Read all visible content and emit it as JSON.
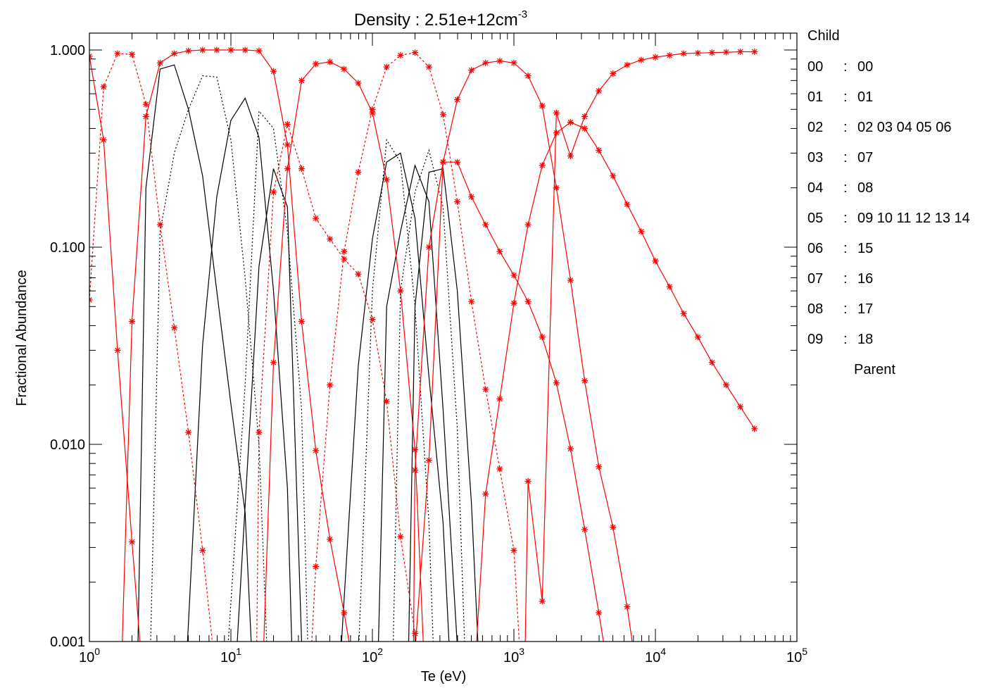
{
  "chart_data": {
    "type": "line",
    "title_prefix": "Density : 2.51e+12cm",
    "title_exp": "-3",
    "xlabel": "Te (eV)",
    "ylabel": "Fractional Abundance",
    "xscale": "log",
    "yscale": "log",
    "xlim": [
      1,
      100000
    ],
    "ylim": [
      0.001,
      1.2
    ],
    "x_ticks": [
      {
        "base": "10",
        "exp": "0",
        "value": 1
      },
      {
        "base": "10",
        "exp": "1",
        "value": 10
      },
      {
        "base": "10",
        "exp": "2",
        "value": 100
      },
      {
        "base": "10",
        "exp": "3",
        "value": 1000
      },
      {
        "base": "10",
        "exp": "4",
        "value": 10000
      },
      {
        "base": "10",
        "exp": "5",
        "value": 100000
      }
    ],
    "y_ticks": [
      {
        "label": "0.001",
        "value": 0.001
      },
      {
        "label": "0.010",
        "value": 0.01
      },
      {
        "label": "0.100",
        "value": 0.1
      },
      {
        "label": "1.000",
        "value": 1.0
      }
    ],
    "legend": {
      "header": "Child",
      "footer": "Parent",
      "placement": "right",
      "rows": [
        {
          "child": "00",
          "sep": ":",
          "parents": "00"
        },
        {
          "child": "01",
          "sep": ":",
          "parents": "01"
        },
        {
          "child": "02",
          "sep": ":",
          "parents": "02 03 04 05 06"
        },
        {
          "child": "03",
          "sep": ":",
          "parents": "07"
        },
        {
          "child": "04",
          "sep": ":",
          "parents": "08"
        },
        {
          "child": "05",
          "sep": ":",
          "parents": "09 10 11 12 13 14"
        },
        {
          "child": "06",
          "sep": ":",
          "parents": "15"
        },
        {
          "child": "07",
          "sep": ":",
          "parents": "16"
        },
        {
          "child": "08",
          "sep": ":",
          "parents": "17"
        },
        {
          "child": "09",
          "sep": ":",
          "parents": "18"
        }
      ]
    },
    "colors": {
      "child": "#ff0000",
      "parent": "#000000",
      "marker": "#ff0000"
    },
    "child_series": [
      {
        "child": "00",
        "dash": false,
        "points": [
          [
            1,
            0.93
          ],
          [
            1.26,
            0.35
          ],
          [
            1.58,
            0.03
          ],
          [
            2.0,
            0.0032
          ],
          [
            2.3,
            0.0009
          ]
        ]
      },
      {
        "child": "01",
        "dash": true,
        "points": [
          [
            1,
            0.054
          ],
          [
            1.26,
            0.65
          ],
          [
            1.58,
            0.96
          ],
          [
            2.0,
            0.95
          ],
          [
            2.51,
            0.53
          ],
          [
            3.16,
            0.13
          ],
          [
            3.98,
            0.039
          ],
          [
            5.01,
            0.0115
          ],
          [
            6.31,
            0.0029
          ],
          [
            7.5,
            0.0009
          ]
        ]
      },
      {
        "child": "02",
        "dash": false,
        "points": [
          [
            1.7,
            0.0009
          ],
          [
            2.0,
            0.042
          ],
          [
            2.51,
            0.46
          ],
          [
            3.16,
            0.86
          ],
          [
            3.98,
            0.96
          ],
          [
            5.01,
            0.99
          ],
          [
            6.31,
            1.0
          ],
          [
            7.94,
            1.0
          ],
          [
            10,
            1.0
          ],
          [
            12.6,
            1.0
          ],
          [
            15.8,
            0.99
          ],
          [
            20.0,
            0.78
          ],
          [
            25.1,
            0.33
          ],
          [
            31.6,
            0.042
          ],
          [
            39.8,
            0.0093
          ],
          [
            50.1,
            0.0033
          ],
          [
            63.1,
            0.0014
          ],
          [
            70,
            0.0009
          ]
        ]
      },
      {
        "child": "03",
        "dash": true,
        "points": [
          [
            15.2,
            0.0009
          ],
          [
            15.8,
            0.0115
          ],
          [
            20.0,
            0.19
          ],
          [
            25.1,
            0.42
          ],
          [
            31.6,
            0.25
          ],
          [
            39.8,
            0.14
          ],
          [
            50.1,
            0.11
          ],
          [
            63.1,
            0.087
          ],
          [
            79.4,
            0.073
          ],
          [
            100,
            0.043
          ],
          [
            126,
            0.0165
          ],
          [
            158,
            0.0034
          ],
          [
            200,
            0.0011
          ],
          [
            210,
            0.0009
          ]
        ]
      },
      {
        "child": "04",
        "dash": false,
        "points": [
          [
            17,
            0.0009
          ],
          [
            20.0,
            0.026
          ],
          [
            25.1,
            0.25
          ],
          [
            31.6,
            0.7
          ],
          [
            39.8,
            0.85
          ],
          [
            50.1,
            0.87
          ],
          [
            63.1,
            0.8
          ],
          [
            79.4,
            0.68
          ],
          [
            100,
            0.48
          ],
          [
            126,
            0.22
          ],
          [
            158,
            0.06
          ],
          [
            200,
            0.0094
          ],
          [
            230,
            0.0009
          ]
        ]
      },
      {
        "child": "05",
        "dash": true,
        "points": [
          [
            37,
            0.0009
          ],
          [
            39.8,
            0.0024
          ],
          [
            50.1,
            0.02
          ],
          [
            63.1,
            0.095
          ],
          [
            79.4,
            0.24
          ],
          [
            100,
            0.5
          ],
          [
            126,
            0.82
          ],
          [
            158,
            0.94
          ],
          [
            200,
            0.97
          ],
          [
            251,
            0.82
          ],
          [
            316,
            0.47
          ],
          [
            398,
            0.17
          ],
          [
            501,
            0.053
          ],
          [
            631,
            0.019
          ],
          [
            794,
            0.0075
          ],
          [
            1000,
            0.0029
          ],
          [
            1100,
            0.0009
          ]
        ]
      },
      {
        "child": "06",
        "dash": false,
        "points": [
          [
            195,
            0.0009
          ],
          [
            200,
            0.0074
          ],
          [
            251,
            0.1
          ],
          [
            316,
            0.27
          ],
          [
            398,
            0.56
          ],
          [
            501,
            0.79
          ],
          [
            631,
            0.86
          ],
          [
            794,
            0.88
          ],
          [
            1000,
            0.86
          ],
          [
            1259,
            0.74
          ],
          [
            1585,
            0.52
          ],
          [
            1995,
            0.2
          ],
          [
            2512,
            0.068
          ],
          [
            3162,
            0.021
          ],
          [
            3981,
            0.0077
          ],
          [
            5012,
            0.0038
          ],
          [
            6310,
            0.0015
          ],
          [
            7000,
            0.0009
          ]
        ]
      },
      {
        "child": "07",
        "dash": false,
        "points": [
          [
            200,
            0.0009
          ],
          [
            251,
            0.0083
          ],
          [
            316,
            0.27
          ],
          [
            398,
            0.27
          ],
          [
            501,
            0.18
          ],
          [
            631,
            0.13
          ],
          [
            794,
            0.095
          ],
          [
            1000,
            0.072
          ],
          [
            1259,
            0.053
          ],
          [
            1585,
            0.035
          ],
          [
            1995,
            0.0205
          ],
          [
            2512,
            0.0095
          ],
          [
            3162,
            0.0037
          ],
          [
            3981,
            0.0014
          ],
          [
            4400,
            0.0009
          ]
        ]
      },
      {
        "child": "08",
        "dash": false,
        "points": [
          [
            540,
            0.0009
          ],
          [
            631,
            0.0056
          ],
          [
            794,
            0.017
          ],
          [
            1000,
            0.052
          ],
          [
            1259,
            0.13
          ],
          [
            1585,
            0.26
          ],
          [
            1995,
            0.38
          ],
          [
            2512,
            0.43
          ],
          [
            3162,
            0.4
          ],
          [
            3981,
            0.31
          ],
          [
            5012,
            0.23
          ],
          [
            6310,
            0.165
          ],
          [
            7943,
            0.12
          ],
          [
            10000,
            0.085
          ],
          [
            12589,
            0.063
          ],
          [
            15849,
            0.046
          ],
          [
            19953,
            0.035
          ],
          [
            25119,
            0.026
          ],
          [
            31623,
            0.02
          ],
          [
            39811,
            0.0155
          ],
          [
            50119,
            0.012
          ]
        ]
      },
      {
        "child": "09",
        "dash": false,
        "points": [
          [
            1200,
            0.0009
          ],
          [
            1259,
            0.0065
          ],
          [
            1585,
            0.0016
          ],
          [
            1995,
            0.48
          ],
          [
            2512,
            0.29
          ],
          [
            3162,
            0.46
          ],
          [
            3981,
            0.62
          ],
          [
            5012,
            0.76
          ],
          [
            6310,
            0.84
          ],
          [
            7943,
            0.89
          ],
          [
            10000,
            0.92
          ],
          [
            12589,
            0.94
          ],
          [
            15849,
            0.96
          ],
          [
            19953,
            0.965
          ],
          [
            25119,
            0.97
          ],
          [
            31623,
            0.975
          ],
          [
            39811,
            0.98
          ],
          [
            50119,
            0.98
          ]
        ]
      }
    ],
    "parent_series": [
      {
        "parent": "03",
        "dash": false,
        "points": [
          [
            2.2,
            0.0009
          ],
          [
            2.51,
            0.2
          ],
          [
            3.16,
            0.8
          ],
          [
            3.98,
            0.84
          ],
          [
            5.01,
            0.5
          ],
          [
            6.31,
            0.23
          ],
          [
            7.94,
            0.06
          ],
          [
            10,
            0.016
          ],
          [
            12.6,
            0.0045
          ],
          [
            14,
            0.0009
          ]
        ]
      },
      {
        "parent": "04",
        "dash": true,
        "points": [
          [
            2.7,
            0.0009
          ],
          [
            3.16,
            0.12
          ],
          [
            3.98,
            0.3
          ],
          [
            5.01,
            0.5
          ],
          [
            6.31,
            0.74
          ],
          [
            7.94,
            0.73
          ],
          [
            10,
            0.35
          ],
          [
            12.6,
            0.07
          ],
          [
            15.8,
            0.01
          ],
          [
            18,
            0.0009
          ]
        ]
      },
      {
        "parent": "05",
        "dash": false,
        "points": [
          [
            4.9,
            0.0009
          ],
          [
            6.31,
            0.032
          ],
          [
            7.94,
            0.18
          ],
          [
            10,
            0.44
          ],
          [
            12.6,
            0.57
          ],
          [
            15.8,
            0.36
          ],
          [
            20.0,
            0.06
          ],
          [
            25.1,
            0.006
          ],
          [
            27,
            0.0009
          ]
        ]
      },
      {
        "parent": "06",
        "dash": true,
        "points": [
          [
            9.5,
            0.0009
          ],
          [
            12.6,
            0.02
          ],
          [
            15.8,
            0.49
          ],
          [
            20.0,
            0.4
          ],
          [
            25.1,
            0.12
          ],
          [
            31.6,
            0.015
          ],
          [
            35,
            0.0009
          ]
        ]
      },
      {
        "parent": "10",
        "dash": false,
        "points": [
          [
            11,
            0.0009
          ],
          [
            15.8,
            0.08
          ],
          [
            20.0,
            0.25
          ],
          [
            25.1,
            0.16
          ],
          [
            31.6,
            0.001
          ],
          [
            32,
            0.0009
          ]
        ]
      },
      {
        "parent": "11",
        "dash": false,
        "points": [
          [
            60,
            0.0009
          ],
          [
            79.4,
            0.025
          ],
          [
            100,
            0.11
          ],
          [
            126,
            0.27
          ],
          [
            158,
            0.3
          ],
          [
            200,
            0.14
          ],
          [
            251,
            0.022
          ],
          [
            316,
            0.004
          ],
          [
            350,
            0.0009
          ]
        ]
      },
      {
        "parent": "12",
        "dash": true,
        "points": [
          [
            80,
            0.0009
          ],
          [
            100,
            0.06
          ],
          [
            126,
            0.35
          ],
          [
            158,
            0.27
          ],
          [
            200,
            0.05
          ],
          [
            251,
            0.004
          ],
          [
            270,
            0.0009
          ]
        ]
      },
      {
        "parent": "13",
        "dash": false,
        "points": [
          [
            110,
            0.0009
          ],
          [
            126,
            0.05
          ],
          [
            158,
            0.12
          ],
          [
            200,
            0.26
          ],
          [
            251,
            0.17
          ],
          [
            316,
            0.015
          ],
          [
            400,
            0.0009
          ]
        ]
      },
      {
        "parent": "14",
        "dash": true,
        "points": [
          [
            140,
            0.0009
          ],
          [
            158,
            0.06
          ],
          [
            200,
            0.19
          ],
          [
            251,
            0.31
          ],
          [
            316,
            0.16
          ],
          [
            398,
            0.012
          ],
          [
            450,
            0.0009
          ]
        ]
      },
      {
        "parent": "15",
        "dash": false,
        "points": [
          [
            180,
            0.0009
          ],
          [
            200,
            0.05
          ],
          [
            251,
            0.24
          ],
          [
            316,
            0.25
          ],
          [
            398,
            0.06
          ],
          [
            501,
            0.005
          ],
          [
            560,
            0.0009
          ]
        ]
      }
    ]
  }
}
